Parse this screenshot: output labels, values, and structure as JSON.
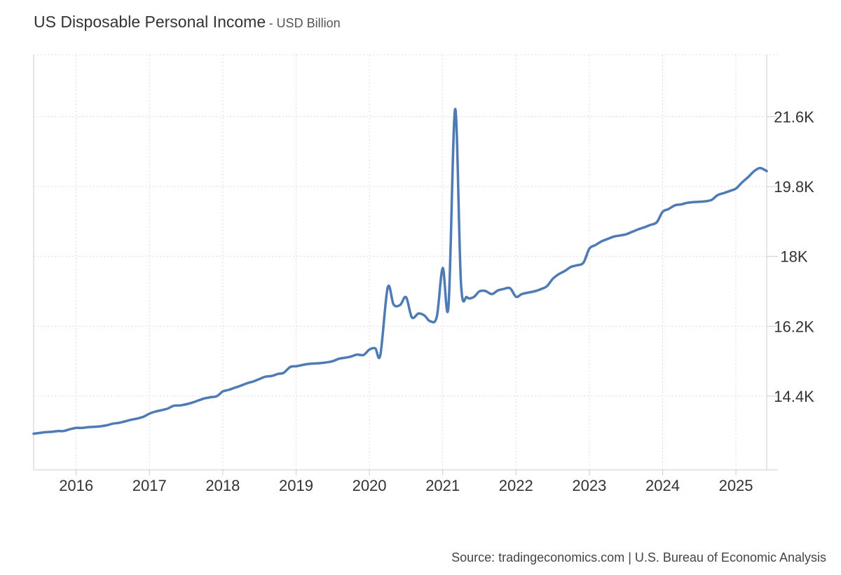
{
  "chart_data": {
    "type": "line",
    "title": "US Disposable Personal Income",
    "subtitle": "- USD Billion",
    "source": "Source: tradingeconomics.com | U.S. Bureau of Economic Analysis",
    "xlabel": "",
    "ylabel": "",
    "x_ticks": [
      "2016",
      "2017",
      "2018",
      "2019",
      "2020",
      "2021",
      "2022",
      "2023",
      "2024",
      "2025"
    ],
    "y_ticks": [
      14400,
      16200,
      18000,
      19800,
      21600
    ],
    "y_tick_labels": [
      "14.4K",
      "16.2K",
      "18K",
      "19.8K",
      "21.6K"
    ],
    "ylim": [
      12500,
      23200
    ],
    "xlim": [
      2015.42,
      2025.42
    ],
    "grid": true,
    "line_color": "#4e7bb5",
    "series": [
      {
        "name": "US Disposable Personal Income",
        "points": [
          [
            2015.42,
            13430
          ],
          [
            2015.5,
            13450
          ],
          [
            2015.58,
            13470
          ],
          [
            2015.67,
            13480
          ],
          [
            2015.75,
            13500
          ],
          [
            2015.83,
            13500
          ],
          [
            2015.92,
            13550
          ],
          [
            2016.0,
            13580
          ],
          [
            2016.08,
            13580
          ],
          [
            2016.17,
            13600
          ],
          [
            2016.25,
            13610
          ],
          [
            2016.33,
            13620
          ],
          [
            2016.42,
            13650
          ],
          [
            2016.5,
            13690
          ],
          [
            2016.58,
            13710
          ],
          [
            2016.67,
            13750
          ],
          [
            2016.75,
            13790
          ],
          [
            2016.83,
            13820
          ],
          [
            2016.92,
            13870
          ],
          [
            2017.0,
            13950
          ],
          [
            2017.08,
            14000
          ],
          [
            2017.17,
            14040
          ],
          [
            2017.25,
            14080
          ],
          [
            2017.33,
            14150
          ],
          [
            2017.42,
            14160
          ],
          [
            2017.5,
            14190
          ],
          [
            2017.58,
            14230
          ],
          [
            2017.67,
            14290
          ],
          [
            2017.75,
            14340
          ],
          [
            2017.83,
            14370
          ],
          [
            2017.92,
            14400
          ],
          [
            2018.0,
            14520
          ],
          [
            2018.08,
            14560
          ],
          [
            2018.17,
            14620
          ],
          [
            2018.25,
            14670
          ],
          [
            2018.33,
            14730
          ],
          [
            2018.42,
            14780
          ],
          [
            2018.5,
            14840
          ],
          [
            2018.58,
            14900
          ],
          [
            2018.67,
            14920
          ],
          [
            2018.75,
            14970
          ],
          [
            2018.83,
            15000
          ],
          [
            2018.92,
            15150
          ],
          [
            2019.0,
            15170
          ],
          [
            2019.08,
            15200
          ],
          [
            2019.17,
            15230
          ],
          [
            2019.25,
            15240
          ],
          [
            2019.33,
            15250
          ],
          [
            2019.42,
            15270
          ],
          [
            2019.5,
            15300
          ],
          [
            2019.58,
            15360
          ],
          [
            2019.67,
            15390
          ],
          [
            2019.75,
            15420
          ],
          [
            2019.83,
            15470
          ],
          [
            2019.92,
            15460
          ],
          [
            2020.0,
            15600
          ],
          [
            2020.08,
            15630
          ],
          [
            2020.15,
            15470
          ],
          [
            2020.25,
            17200
          ],
          [
            2020.33,
            16760
          ],
          [
            2020.42,
            16750
          ],
          [
            2020.5,
            16950
          ],
          [
            2020.58,
            16430
          ],
          [
            2020.67,
            16530
          ],
          [
            2020.75,
            16480
          ],
          [
            2020.83,
            16330
          ],
          [
            2020.92,
            16450
          ],
          [
            2021.0,
            17700
          ],
          [
            2021.08,
            16730
          ],
          [
            2021.17,
            21800
          ],
          [
            2021.25,
            17300
          ],
          [
            2021.33,
            16950
          ],
          [
            2021.42,
            16950
          ],
          [
            2021.5,
            17100
          ],
          [
            2021.58,
            17110
          ],
          [
            2021.67,
            17030
          ],
          [
            2021.75,
            17120
          ],
          [
            2021.83,
            17160
          ],
          [
            2021.92,
            17180
          ],
          [
            2022.0,
            16960
          ],
          [
            2022.08,
            17030
          ],
          [
            2022.17,
            17070
          ],
          [
            2022.25,
            17100
          ],
          [
            2022.33,
            17150
          ],
          [
            2022.42,
            17230
          ],
          [
            2022.5,
            17420
          ],
          [
            2022.58,
            17540
          ],
          [
            2022.67,
            17630
          ],
          [
            2022.75,
            17730
          ],
          [
            2022.83,
            17770
          ],
          [
            2022.92,
            17840
          ],
          [
            2023.0,
            18200
          ],
          [
            2023.08,
            18290
          ],
          [
            2023.17,
            18390
          ],
          [
            2023.25,
            18450
          ],
          [
            2023.33,
            18510
          ],
          [
            2023.42,
            18540
          ],
          [
            2023.5,
            18570
          ],
          [
            2023.58,
            18630
          ],
          [
            2023.67,
            18700
          ],
          [
            2023.75,
            18750
          ],
          [
            2023.83,
            18810
          ],
          [
            2023.92,
            18880
          ],
          [
            2024.0,
            19150
          ],
          [
            2024.08,
            19220
          ],
          [
            2024.17,
            19320
          ],
          [
            2024.25,
            19340
          ],
          [
            2024.33,
            19380
          ],
          [
            2024.42,
            19400
          ],
          [
            2024.5,
            19410
          ],
          [
            2024.58,
            19420
          ],
          [
            2024.67,
            19460
          ],
          [
            2024.75,
            19580
          ],
          [
            2024.83,
            19630
          ],
          [
            2024.92,
            19690
          ],
          [
            2025.0,
            19750
          ],
          [
            2025.08,
            19900
          ],
          [
            2025.17,
            20050
          ],
          [
            2025.25,
            20200
          ],
          [
            2025.33,
            20280
          ],
          [
            2025.42,
            20200
          ]
        ]
      }
    ]
  }
}
